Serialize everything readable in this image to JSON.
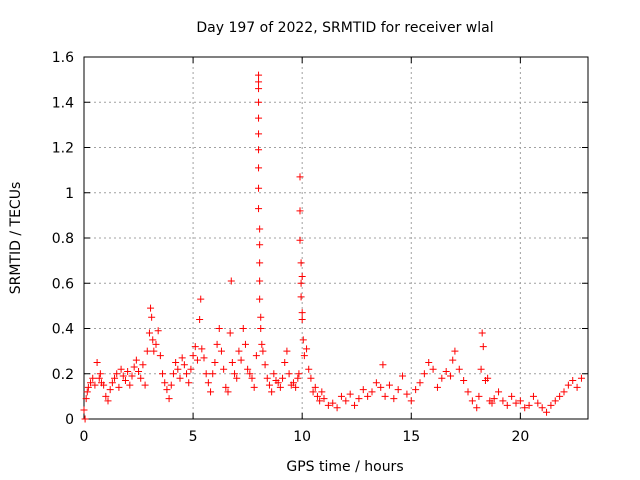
{
  "chart_data": {
    "type": "scatter",
    "title": "Day 197 of 2022, SRMTID for receiver wlal",
    "xlabel": "GPS time / hours",
    "ylabel": "SRMTID / TECUs",
    "xlim": [
      0,
      23.1
    ],
    "ylim": [
      0,
      1.6
    ],
    "xticks": [
      0,
      5,
      10,
      15,
      20
    ],
    "xtick_labels": [
      "0",
      "5",
      "10",
      "15",
      "20"
    ],
    "yticks": [
      0,
      0.2,
      0.4,
      0.6,
      0.8,
      1,
      1.2,
      1.4,
      1.6
    ],
    "ytick_labels": [
      "0",
      "0.2",
      "0.4",
      "0.6",
      "0.8",
      "1",
      "1.2",
      "1.4",
      "1.6"
    ],
    "grid": true,
    "marker": "+",
    "color": "#ff0000",
    "series": [
      {
        "name": "SRMTID",
        "x": [
          0.0,
          0.05,
          0.1,
          0.15,
          0.2,
          0.3,
          0.4,
          0.5,
          0.6,
          0.7,
          0.75,
          0.8,
          0.9,
          1.0,
          1.1,
          1.2,
          1.3,
          1.4,
          1.5,
          1.6,
          1.7,
          1.8,
          1.9,
          2.0,
          2.1,
          2.2,
          2.3,
          2.4,
          2.5,
          2.6,
          2.7,
          2.8,
          2.9,
          3.0,
          3.05,
          3.1,
          3.15,
          3.2,
          3.3,
          3.4,
          3.5,
          3.6,
          3.7,
          3.8,
          3.9,
          4.0,
          4.1,
          4.2,
          4.3,
          4.4,
          4.5,
          4.6,
          4.7,
          4.8,
          4.9,
          5.0,
          5.1,
          5.2,
          5.3,
          5.35,
          5.4,
          5.5,
          5.6,
          5.7,
          5.8,
          5.9,
          6.0,
          6.1,
          6.2,
          6.3,
          6.4,
          6.5,
          6.6,
          6.7,
          6.75,
          6.8,
          6.9,
          7.0,
          7.1,
          7.2,
          7.3,
          7.4,
          7.5,
          7.6,
          7.7,
          7.8,
          7.9,
          8.0,
          8.0,
          8.0,
          8.0,
          8.0,
          8.0,
          8.0,
          8.0,
          8.0,
          8.0,
          8.05,
          8.05,
          8.05,
          8.05,
          8.05,
          8.1,
          8.1,
          8.15,
          8.2,
          8.3,
          8.4,
          8.5,
          8.6,
          8.7,
          8.8,
          8.9,
          9.0,
          9.1,
          9.2,
          9.3,
          9.4,
          9.5,
          9.6,
          9.7,
          9.8,
          9.85,
          9.9,
          9.9,
          9.9,
          9.95,
          9.95,
          9.95,
          10.0,
          10.0,
          10.0,
          10.05,
          10.1,
          10.2,
          10.3,
          10.4,
          10.5,
          10.6,
          10.7,
          10.8,
          10.9,
          11.0,
          11.2,
          11.4,
          11.6,
          11.8,
          12.0,
          12.2,
          12.4,
          12.6,
          12.8,
          13.0,
          13.2,
          13.4,
          13.6,
          13.7,
          13.8,
          14.0,
          14.2,
          14.4,
          14.6,
          14.8,
          15.0,
          15.2,
          15.4,
          15.6,
          15.8,
          16.0,
          16.2,
          16.4,
          16.6,
          16.8,
          16.9,
          17.0,
          17.2,
          17.4,
          17.6,
          17.8,
          18.0,
          18.1,
          18.2,
          18.25,
          18.3,
          18.4,
          18.5,
          18.6,
          18.7,
          18.8,
          19.0,
          19.2,
          19.4,
          19.6,
          19.8,
          20.0,
          20.2,
          20.4,
          20.6,
          20.8,
          21.0,
          21.2,
          21.4,
          21.6,
          21.8,
          22.0,
          22.2,
          22.4,
          22.6,
          22.8
        ],
        "y": [
          0.04,
          0.0,
          0.09,
          0.12,
          0.14,
          0.16,
          0.18,
          0.15,
          0.25,
          0.18,
          0.2,
          0.16,
          0.15,
          0.1,
          0.08,
          0.13,
          0.16,
          0.18,
          0.2,
          0.14,
          0.22,
          0.19,
          0.17,
          0.21,
          0.15,
          0.19,
          0.23,
          0.26,
          0.21,
          0.18,
          0.24,
          0.15,
          0.3,
          0.38,
          0.49,
          0.45,
          0.35,
          0.3,
          0.33,
          0.39,
          0.28,
          0.2,
          0.16,
          0.13,
          0.09,
          0.15,
          0.2,
          0.25,
          0.22,
          0.18,
          0.27,
          0.24,
          0.2,
          0.16,
          0.22,
          0.28,
          0.32,
          0.26,
          0.44,
          0.53,
          0.31,
          0.27,
          0.2,
          0.16,
          0.12,
          0.2,
          0.25,
          0.33,
          0.4,
          0.3,
          0.22,
          0.14,
          0.12,
          0.38,
          0.61,
          0.25,
          0.2,
          0.18,
          0.3,
          0.26,
          0.4,
          0.33,
          0.22,
          0.2,
          0.18,
          0.14,
          0.28,
          1.52,
          1.49,
          1.46,
          1.4,
          1.33,
          1.26,
          1.19,
          1.11,
          1.02,
          0.93,
          0.84,
          0.77,
          0.69,
          0.61,
          0.53,
          0.45,
          0.4,
          0.33,
          0.3,
          0.24,
          0.18,
          0.15,
          0.12,
          0.2,
          0.17,
          0.16,
          0.14,
          0.18,
          0.25,
          0.3,
          0.2,
          0.15,
          0.16,
          0.14,
          0.18,
          0.2,
          1.07,
          0.92,
          0.79,
          0.69,
          0.6,
          0.54,
          0.63,
          0.47,
          0.44,
          0.35,
          0.28,
          0.31,
          0.22,
          0.18,
          0.12,
          0.14,
          0.1,
          0.08,
          0.12,
          0.09,
          0.06,
          0.07,
          0.05,
          0.1,
          0.08,
          0.11,
          0.06,
          0.09,
          0.13,
          0.1,
          0.12,
          0.16,
          0.14,
          0.24,
          0.1,
          0.15,
          0.09,
          0.13,
          0.19,
          0.11,
          0.08,
          0.13,
          0.16,
          0.2,
          0.25,
          0.22,
          0.14,
          0.18,
          0.21,
          0.19,
          0.26,
          0.3,
          0.22,
          0.17,
          0.12,
          0.08,
          0.05,
          0.1,
          0.22,
          0.38,
          0.32,
          0.17,
          0.18,
          0.08,
          0.07,
          0.09,
          0.12,
          0.08,
          0.06,
          0.1,
          0.07,
          0.08,
          0.05,
          0.06,
          0.1,
          0.07,
          0.05,
          0.03,
          0.06,
          0.08,
          0.1,
          0.12,
          0.15,
          0.17,
          0.14,
          0.18
        ]
      }
    ]
  }
}
